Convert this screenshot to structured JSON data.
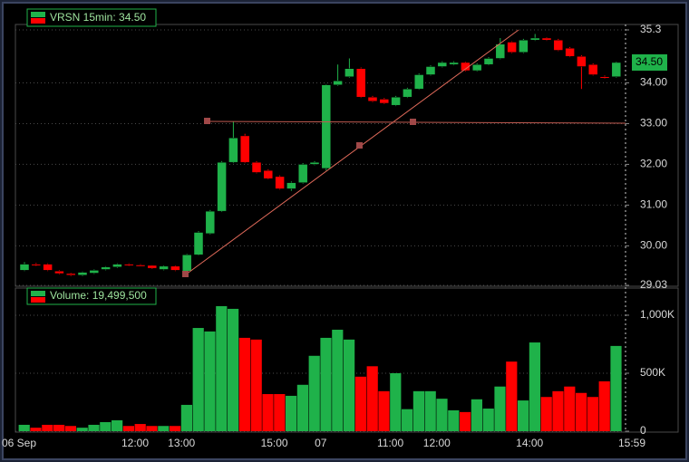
{
  "chart_data": [
    {
      "type": "candlestick",
      "title": "VRSN 15min: 34.50",
      "last_label": "34.50",
      "categories": [
        "06 Sep",
        null,
        null,
        null,
        null,
        null,
        null,
        null,
        null,
        null,
        "12:00",
        null,
        null,
        null,
        "13:00",
        null,
        null,
        null,
        null,
        null,
        null,
        null,
        "15:00",
        null,
        null,
        null,
        "07",
        null,
        null,
        null,
        null,
        null,
        "11:00",
        null,
        null,
        null,
        "12:00",
        null,
        null,
        null,
        null,
        null,
        null,
        null,
        "14:00",
        null,
        null,
        null,
        null,
        null,
        null,
        "15:59"
      ],
      "open": [
        29.4,
        29.55,
        29.55,
        29.38,
        29.32,
        29.28,
        29.33,
        29.42,
        29.48,
        29.55,
        29.53,
        29.52,
        29.42,
        29.5,
        29.38,
        29.78,
        30.3,
        30.85,
        32.05,
        32.7,
        32.05,
        31.85,
        31.7,
        31.4,
        31.55,
        32.0,
        31.9,
        33.95,
        34.15,
        34.35,
        33.65,
        33.6,
        33.45,
        33.65,
        33.85,
        34.2,
        34.4,
        34.45,
        34.5,
        34.3,
        34.45,
        34.6,
        35.0,
        34.75,
        35.05,
        35.1,
        35.05,
        34.85,
        34.65,
        34.45,
        34.15,
        34.15
      ],
      "high": [
        29.6,
        29.58,
        29.57,
        29.4,
        29.34,
        29.37,
        29.42,
        29.5,
        29.57,
        29.57,
        29.55,
        29.53,
        29.52,
        29.52,
        29.8,
        30.36,
        30.88,
        32.08,
        33.05,
        32.75,
        32.08,
        31.88,
        31.73,
        31.58,
        32.03,
        32.08,
        33.97,
        34.45,
        34.6,
        34.38,
        33.68,
        33.63,
        33.68,
        33.88,
        34.23,
        34.43,
        34.53,
        34.53,
        34.52,
        34.48,
        34.63,
        35.1,
        35.02,
        35.08,
        35.2,
        35.12,
        35.08,
        34.88,
        34.68,
        34.48,
        34.18,
        34.52
      ],
      "low": [
        29.38,
        29.5,
        29.38,
        29.3,
        29.26,
        29.26,
        29.31,
        29.4,
        29.46,
        29.5,
        29.5,
        29.43,
        29.4,
        29.38,
        29.36,
        29.76,
        30.28,
        30.83,
        32.03,
        32.03,
        31.78,
        31.63,
        31.38,
        31.35,
        31.53,
        31.98,
        31.85,
        33.93,
        34.13,
        33.63,
        33.53,
        33.48,
        33.43,
        33.63,
        33.83,
        34.18,
        34.38,
        34.43,
        34.28,
        34.28,
        34.43,
        34.58,
        34.73,
        34.73,
        35.03,
        35.03,
        34.78,
        34.63,
        33.85,
        34.18,
        34.1,
        34.13
      ],
      "close": [
        29.55,
        29.52,
        29.4,
        29.32,
        29.28,
        29.35,
        29.4,
        29.48,
        29.55,
        29.52,
        29.5,
        29.45,
        29.5,
        29.4,
        29.78,
        30.33,
        30.85,
        32.05,
        32.65,
        32.05,
        31.8,
        31.65,
        31.4,
        31.55,
        32.0,
        32.05,
        33.95,
        34.05,
        34.35,
        33.65,
        33.55,
        33.5,
        33.65,
        33.85,
        34.2,
        34.4,
        34.5,
        34.5,
        34.3,
        34.45,
        34.6,
        34.95,
        34.75,
        35.05,
        35.1,
        35.05,
        34.8,
        34.65,
        34.4,
        34.2,
        34.12,
        34.5
      ],
      "up_color": "#1fb24a",
      "down_color": "#ff0000",
      "ylim": [
        29.03,
        35.3
      ],
      "yticks": [
        29.03,
        {
          "value": 30,
          "label": "30.00"
        },
        {
          "value": 31,
          "label": "31.00"
        },
        {
          "value": 32,
          "label": "32.00"
        },
        {
          "value": 33,
          "label": "33.00"
        },
        {
          "value": 34,
          "label": "34.00"
        },
        35.3
      ],
      "grid": true
    },
    {
      "type": "bar",
      "title": "Volume: 19,499,500",
      "values": [
        55,
        30,
        55,
        55,
        45,
        30,
        55,
        78,
        94,
        45,
        62,
        45,
        45,
        45,
        227,
        890,
        860,
        1078,
        1055,
        805,
        790,
        320,
        320,
        305,
        400,
        650,
        805,
        875,
        790,
        470,
        560,
        345,
        500,
        190,
        345,
        345,
        280,
        180,
        165,
        275,
        195,
        385,
        600,
        265,
        765,
        295,
        345,
        385,
        330,
        295,
        430,
        735
      ],
      "ylim": [
        0,
        1234
      ],
      "yticks": [
        0,
        {
          "value": 500,
          "label": "500K"
        },
        {
          "value": 1000,
          "label": "1,000K"
        }
      ],
      "grid": true
    }
  ]
}
